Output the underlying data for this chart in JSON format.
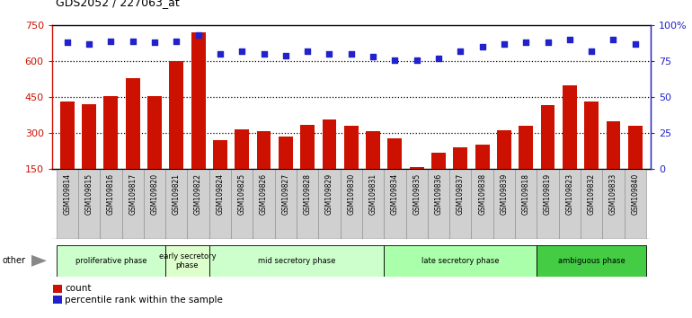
{
  "title": "GDS2052 / 227063_at",
  "samples": [
    "GSM109814",
    "GSM109815",
    "GSM109816",
    "GSM109817",
    "GSM109820",
    "GSM109821",
    "GSM109822",
    "GSM109824",
    "GSM109825",
    "GSM109826",
    "GSM109827",
    "GSM109828",
    "GSM109829",
    "GSM109830",
    "GSM109831",
    "GSM109834",
    "GSM109835",
    "GSM109836",
    "GSM109837",
    "GSM109838",
    "GSM109839",
    "GSM109818",
    "GSM109819",
    "GSM109823",
    "GSM109832",
    "GSM109833",
    "GSM109840"
  ],
  "counts": [
    430,
    420,
    455,
    530,
    455,
    600,
    720,
    270,
    315,
    305,
    285,
    335,
    355,
    330,
    305,
    275,
    155,
    215,
    240,
    250,
    310,
    330,
    415,
    500,
    430,
    350,
    330
  ],
  "percentiles": [
    88,
    87,
    89,
    89,
    88,
    89,
    93,
    80,
    82,
    80,
    79,
    82,
    80,
    80,
    78,
    76,
    76,
    77,
    82,
    85,
    87,
    88,
    88,
    90,
    82,
    90,
    87
  ],
  "phases": [
    {
      "label": "proliferative phase",
      "start": 0,
      "end": 5,
      "color": "#ccffcc"
    },
    {
      "label": "early secretory\nphase",
      "start": 5,
      "end": 7,
      "color": "#ddffcc"
    },
    {
      "label": "mid secretory phase",
      "start": 7,
      "end": 15,
      "color": "#ccffcc"
    },
    {
      "label": "late secretory phase",
      "start": 15,
      "end": 22,
      "color": "#aaffaa"
    },
    {
      "label": "ambiguous phase",
      "start": 22,
      "end": 27,
      "color": "#44cc44"
    }
  ],
  "ylim_left": [
    150,
    750
  ],
  "ylim_right": [
    0,
    100
  ],
  "yticks_left": [
    150,
    300,
    450,
    600,
    750
  ],
  "yticks_right": [
    0,
    25,
    50,
    75,
    100
  ],
  "bar_color": "#cc1100",
  "dot_color": "#2222cc",
  "background_color": "#ffffff",
  "other_label": "other",
  "legend_count": "count",
  "legend_pct": "percentile rank within the sample",
  "tick_label_bg": "#cccccc"
}
